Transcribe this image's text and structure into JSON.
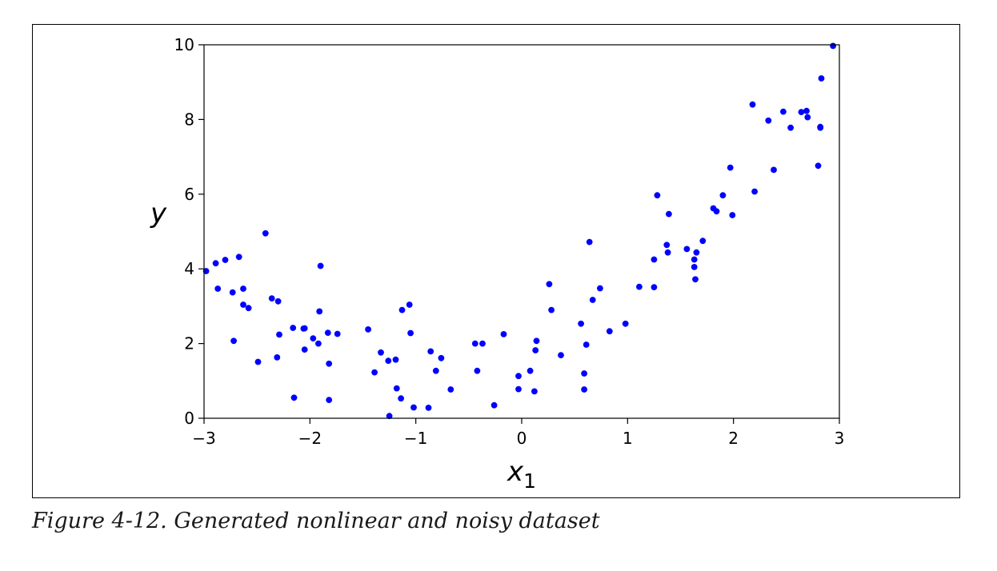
{
  "figure": {
    "caption": "Figure 4-12. Generated nonlinear and noisy dataset"
  },
  "chart_data": {
    "type": "scatter",
    "xlabel": "x",
    "xlabel_subscript": "1",
    "ylabel": "y",
    "xlim": [
      -3,
      3
    ],
    "ylim": [
      0,
      10
    ],
    "xticks": [
      "−3",
      "−2",
      "−1",
      "0",
      "1",
      "2",
      "3"
    ],
    "yticks": [
      "0",
      "2",
      "4",
      "6",
      "8",
      "10"
    ],
    "grid": false,
    "marker_color": "#0000ff",
    "x": [
      -2.98,
      -2.89,
      -2.87,
      -2.8,
      -2.73,
      -2.72,
      -2.67,
      -2.63,
      -2.63,
      -2.58,
      -2.49,
      -2.42,
      -2.36,
      -2.31,
      -2.3,
      -2.29,
      -2.16,
      -2.15,
      -2.06,
      -2.05,
      -2.05,
      -1.97,
      -1.92,
      -1.91,
      -1.9,
      -1.83,
      -1.82,
      -1.82,
      -1.74,
      -1.45,
      -1.39,
      -1.33,
      -1.26,
      -1.25,
      -1.19,
      -1.18,
      -1.14,
      -1.13,
      -1.06,
      -1.05,
      -1.02,
      -0.88,
      -0.86,
      -0.81,
      -0.76,
      -0.67,
      -0.44,
      -0.42,
      -0.37,
      -0.26,
      -0.17,
      -0.03,
      -0.03,
      0.08,
      0.12,
      0.13,
      0.14,
      0.26,
      0.28,
      0.37,
      0.56,
      0.59,
      0.59,
      0.61,
      0.64,
      0.67,
      0.74,
      0.83,
      0.98,
      1.11,
      1.25,
      1.25,
      1.28,
      1.37,
      1.38,
      1.39,
      1.56,
      1.63,
      1.63,
      1.64,
      1.65,
      1.71,
      1.81,
      1.84,
      1.9,
      1.97,
      1.99,
      2.18,
      2.2,
      2.33,
      2.38,
      2.47,
      2.54,
      2.64,
      2.69,
      2.7,
      2.8,
      2.82,
      2.83,
      2.82,
      2.94
    ],
    "y": [
      3.94,
      4.15,
      3.47,
      4.24,
      3.37,
      2.07,
      4.32,
      3.47,
      3.04,
      2.95,
      1.51,
      4.95,
      3.21,
      1.63,
      3.13,
      2.24,
      2.42,
      0.55,
      2.4,
      1.84,
      2.41,
      2.14,
      2.0,
      2.86,
      4.08,
      2.29,
      1.46,
      0.49,
      2.26,
      2.38,
      1.23,
      1.76,
      1.54,
      0.06,
      1.57,
      0.8,
      0.53,
      2.9,
      3.04,
      2.28,
      0.29,
      0.28,
      1.79,
      1.27,
      1.61,
      0.77,
      2.0,
      1.27,
      2.0,
      0.35,
      2.25,
      1.13,
      0.78,
      1.27,
      0.72,
      1.82,
      2.07,
      3.59,
      2.9,
      1.69,
      2.53,
      0.77,
      1.2,
      1.97,
      4.72,
      3.17,
      3.48,
      2.33,
      2.53,
      3.52,
      4.25,
      3.51,
      5.97,
      4.64,
      4.44,
      5.47,
      4.53,
      4.25,
      4.05,
      3.72,
      4.44,
      4.75,
      5.62,
      5.54,
      5.97,
      6.71,
      5.44,
      8.4,
      6.07,
      7.97,
      6.65,
      8.21,
      7.78,
      8.2,
      8.23,
      8.06,
      6.76,
      7.78,
      9.1,
      7.8,
      9.97
    ]
  }
}
